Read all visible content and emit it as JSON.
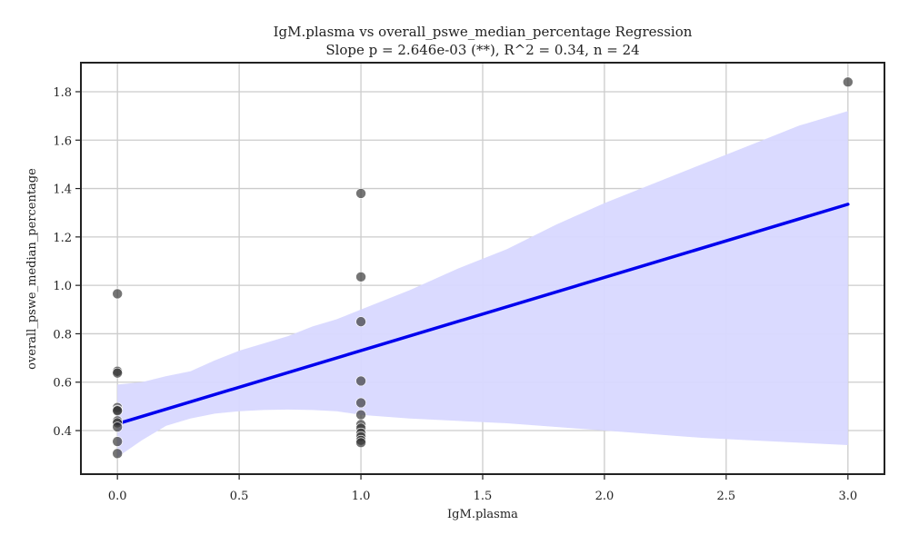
{
  "chart_data": {
    "type": "scatter",
    "title": "IgM.plasma vs overall_pswe_median_percentage Regression",
    "subtitle": "Slope p = 2.646e-03 (**), R^2 = 0.34, n = 24",
    "xlabel": "IgM.plasma",
    "ylabel": "overall_pswe_median_percentage",
    "xlim": [
      -0.15,
      3.15
    ],
    "ylim": [
      0.22,
      1.92
    ],
    "xticks": [
      0.0,
      0.5,
      1.0,
      1.5,
      2.0,
      2.5,
      3.0
    ],
    "xtick_labels": [
      "0.0",
      "0.5",
      "1.0",
      "1.5",
      "2.0",
      "2.5",
      "3.0"
    ],
    "yticks": [
      0.4,
      0.6,
      0.8,
      1.0,
      1.2,
      1.4,
      1.6,
      1.8
    ],
    "ytick_labels": [
      "0.4",
      "0.6",
      "0.8",
      "1.0",
      "1.2",
      "1.4",
      "1.6",
      "1.8"
    ],
    "grid": true,
    "points": [
      {
        "x": 0,
        "y": 0.965
      },
      {
        "x": 0,
        "y": 0.645
      },
      {
        "x": 0,
        "y": 0.638
      },
      {
        "x": 0,
        "y": 0.495
      },
      {
        "x": 0,
        "y": 0.485
      },
      {
        "x": 0,
        "y": 0.482
      },
      {
        "x": 0,
        "y": 0.44
      },
      {
        "x": 0,
        "y": 0.432
      },
      {
        "x": 0,
        "y": 0.415
      },
      {
        "x": 0,
        "y": 0.355
      },
      {
        "x": 0,
        "y": 0.305
      },
      {
        "x": 1,
        "y": 1.38
      },
      {
        "x": 1,
        "y": 1.035
      },
      {
        "x": 1,
        "y": 0.85
      },
      {
        "x": 1,
        "y": 0.605
      },
      {
        "x": 1,
        "y": 0.515
      },
      {
        "x": 1,
        "y": 0.465
      },
      {
        "x": 1,
        "y": 0.425
      },
      {
        "x": 1,
        "y": 0.41
      },
      {
        "x": 1,
        "y": 0.39
      },
      {
        "x": 1,
        "y": 0.375
      },
      {
        "x": 1,
        "y": 0.36
      },
      {
        "x": 1,
        "y": 0.35
      },
      {
        "x": 3,
        "y": 1.84
      }
    ],
    "regression": {
      "x": [
        0,
        3
      ],
      "y": [
        0.428,
        1.335
      ]
    },
    "confidence_band": {
      "x": [
        0,
        0.1,
        0.2,
        0.3,
        0.4,
        0.5,
        0.6,
        0.7,
        0.8,
        0.9,
        1.0,
        1.2,
        1.4,
        1.6,
        1.8,
        2.0,
        2.2,
        2.4,
        2.6,
        2.8,
        3.0
      ],
      "upper": [
        0.59,
        0.6,
        0.625,
        0.645,
        0.69,
        0.73,
        0.76,
        0.79,
        0.83,
        0.86,
        0.9,
        0.98,
        1.07,
        1.15,
        1.25,
        1.34,
        1.42,
        1.5,
        1.58,
        1.66,
        1.72
      ],
      "lower": [
        0.29,
        0.36,
        0.42,
        0.45,
        0.47,
        0.48,
        0.485,
        0.487,
        0.485,
        0.48,
        0.465,
        0.45,
        0.44,
        0.43,
        0.415,
        0.4,
        0.385,
        0.37,
        0.36,
        0.35,
        0.34
      ]
    },
    "colors": {
      "point": "#333333",
      "regression_line": "#0000ee",
      "band": "#d8d8ff"
    }
  }
}
